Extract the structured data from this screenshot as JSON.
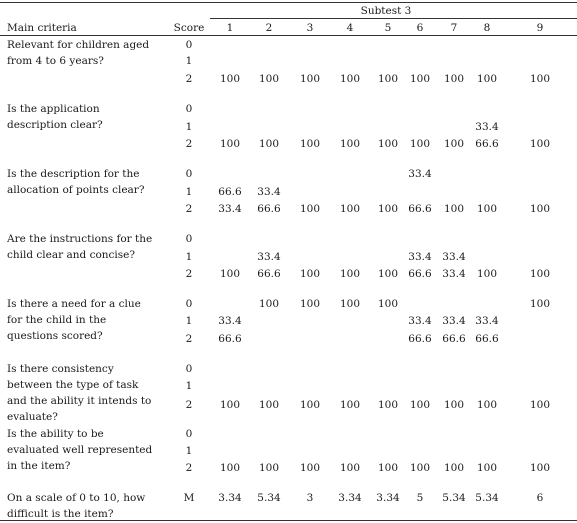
{
  "header": {
    "group_label": "Subtest 3",
    "main_criteria": "Main criteria",
    "score": "Score",
    "items": [
      "1",
      "2",
      "3",
      "4",
      "5",
      "6",
      "7",
      "8",
      "9"
    ]
  },
  "rows": [
    {
      "criterion": "Relevant for children aged from 4 to 6 years?",
      "scores": [
        {
          "label": "0",
          "values": [
            "",
            "",
            "",
            "",
            "",
            "",
            "",
            "",
            ""
          ]
        },
        {
          "label": "1",
          "values": [
            "",
            "",
            "",
            "",
            "",
            "",
            "",
            "",
            ""
          ]
        },
        {
          "label": "2",
          "values": [
            "100",
            "100",
            "100",
            "100",
            "100",
            "100",
            "100",
            "100",
            "100"
          ]
        }
      ]
    },
    {
      "criterion": "Is the application description clear?",
      "scores": [
        {
          "label": "0",
          "values": [
            "",
            "",
            "",
            "",
            "",
            "",
            "",
            "",
            ""
          ]
        },
        {
          "label": "1",
          "values": [
            "",
            "",
            "",
            "",
            "",
            "",
            "",
            "33.4",
            ""
          ]
        },
        {
          "label": "2",
          "values": [
            "100",
            "100",
            "100",
            "100",
            "100",
            "100",
            "100",
            "66.6",
            "100"
          ]
        }
      ]
    },
    {
      "criterion": "Is the description for the allocation of points clear?",
      "scores": [
        {
          "label": "0",
          "values": [
            "",
            "",
            "",
            "",
            "",
            "33.4",
            "",
            "",
            ""
          ]
        },
        {
          "label": "1",
          "values": [
            "66.6",
            "33.4",
            "",
            "",
            "",
            "",
            "",
            "",
            ""
          ]
        },
        {
          "label": "2",
          "values": [
            "33.4",
            "66.6",
            "100",
            "100",
            "100",
            "66.6",
            "100",
            "100",
            "100"
          ]
        }
      ]
    },
    {
      "criterion": "Are the instructions for the child clear and concise?",
      "scores": [
        {
          "label": "0",
          "values": [
            "",
            "",
            "",
            "",
            "",
            "",
            "",
            "",
            ""
          ]
        },
        {
          "label": "1",
          "values": [
            "",
            "33.4",
            "",
            "",
            "",
            "33.4",
            "33.4",
            "",
            ""
          ]
        },
        {
          "label": "2",
          "values": [
            "100",
            "66.6",
            "100",
            "100",
            "100",
            "66.6",
            "33.4",
            "100",
            "100"
          ]
        }
      ]
    },
    {
      "criterion": "Is there a need for a clue for the child in the questions scored?",
      "scores": [
        {
          "label": "0",
          "values": [
            "",
            "100",
            "100",
            "100",
            "100",
            "",
            "",
            "",
            "100"
          ]
        },
        {
          "label": "1",
          "values": [
            "33.4",
            "",
            "",
            "",
            "",
            "33.4",
            "33.4",
            "33.4",
            ""
          ]
        },
        {
          "label": "2",
          "values": [
            "66.6",
            "",
            "",
            "",
            "",
            "66.6",
            "66.6",
            "66.6",
            ""
          ]
        }
      ]
    },
    {
      "criterion": "Is there consistency between the type of task and the ability it intends to evaluate?",
      "scores": [
        {
          "label": "0",
          "values": [
            "",
            "",
            "",
            "",
            "",
            "",
            "",
            "",
            ""
          ]
        },
        {
          "label": "1",
          "values": [
            "",
            "",
            "",
            "",
            "",
            "",
            "",
            "",
            ""
          ]
        },
        {
          "label": "2",
          "values": [
            "100",
            "100",
            "100",
            "100",
            "100",
            "100",
            "100",
            "100",
            "100"
          ]
        }
      ]
    },
    {
      "criterion": "Is the ability to be evaluated well represented in the item?",
      "scores": [
        {
          "label": "0",
          "values": [
            "",
            "",
            "",
            "",
            "",
            "",
            "",
            "",
            ""
          ]
        },
        {
          "label": "1",
          "values": [
            "",
            "",
            "",
            "",
            "",
            "",
            "",
            "",
            ""
          ]
        },
        {
          "label": "2",
          "values": [
            "100",
            "100",
            "100",
            "100",
            "100",
            "100",
            "100",
            "100",
            "100"
          ]
        }
      ]
    },
    {
      "criterion": "On a scale of 0 to 10, how difficult is the item?",
      "scores": [
        {
          "label": "M",
          "values": [
            "3.34",
            "5.34",
            "3",
            "3.34",
            "3.34",
            "5",
            "5.34",
            "5.34",
            "6"
          ]
        }
      ]
    }
  ]
}
